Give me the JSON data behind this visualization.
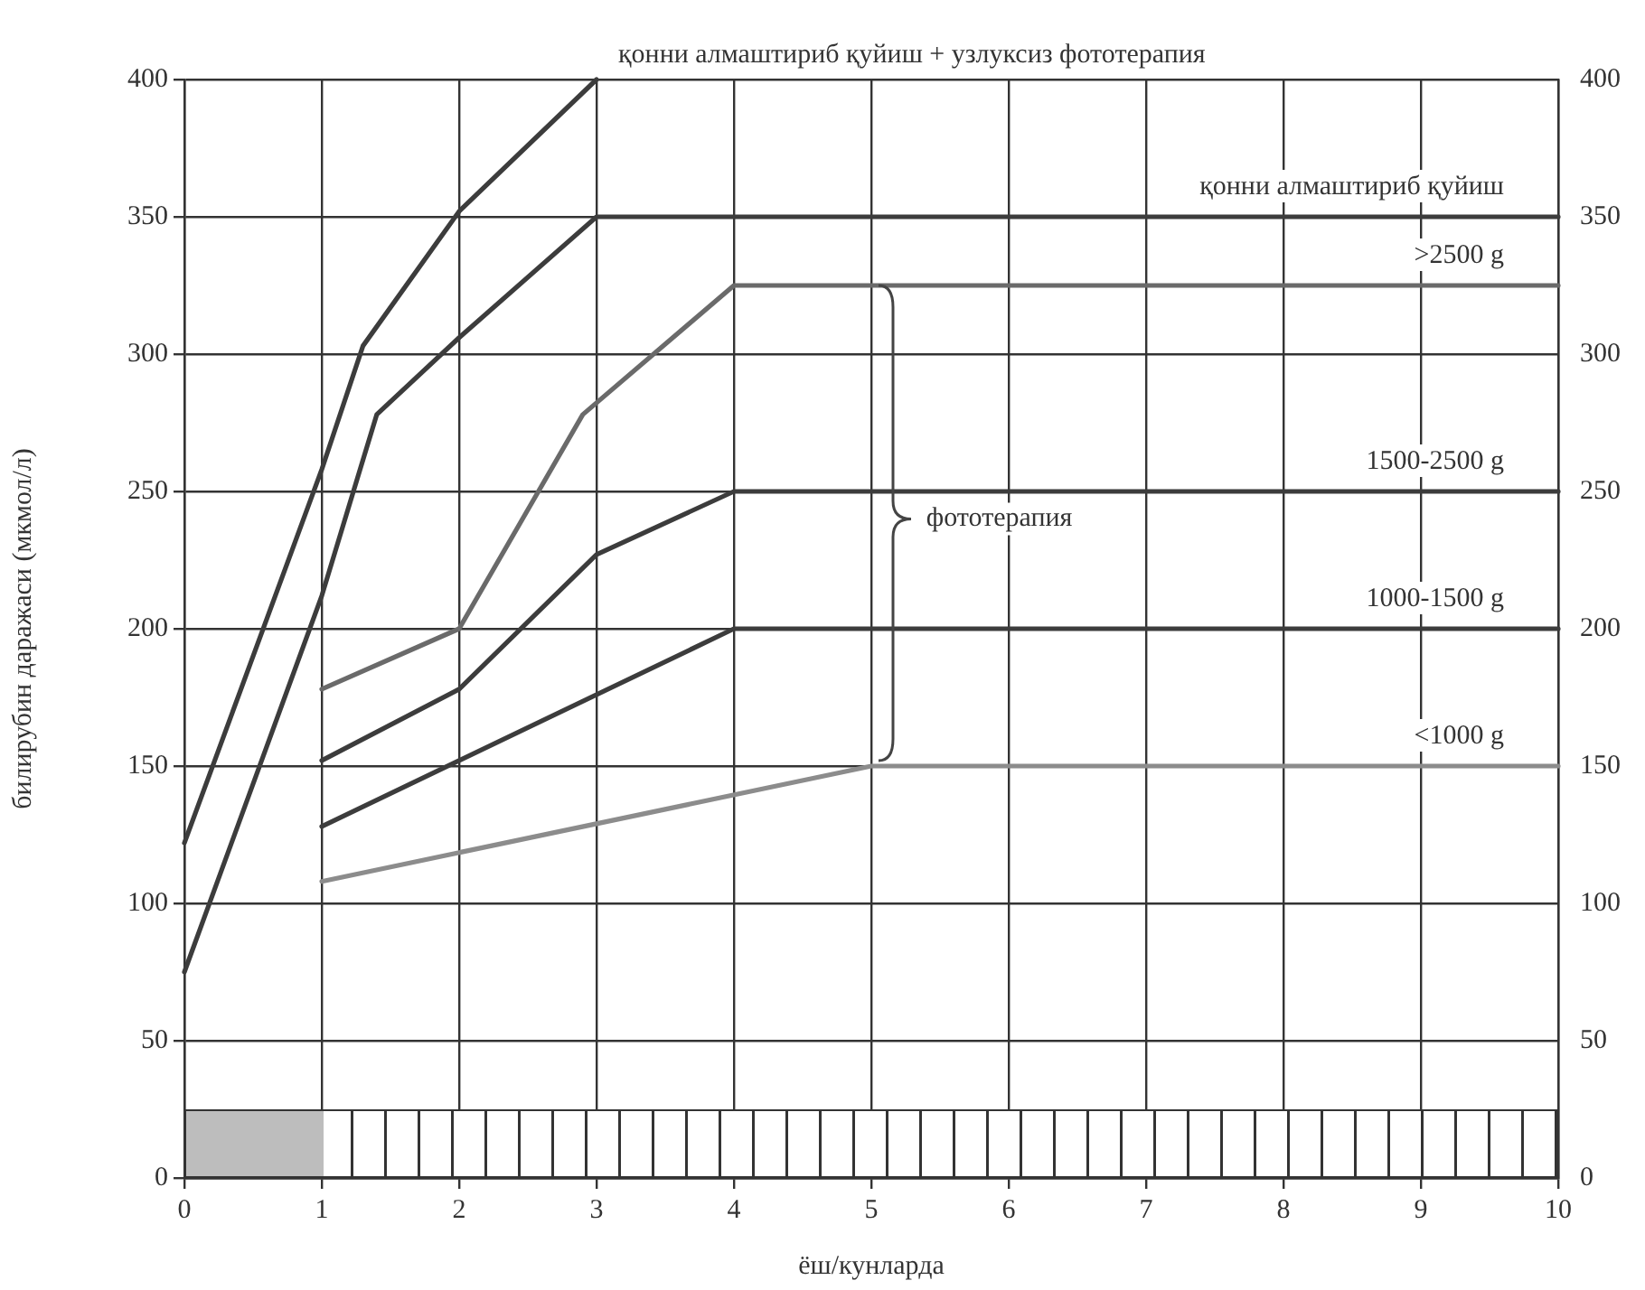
{
  "chart_data": {
    "type": "line",
    "xlabel": "ёш/кунларда",
    "ylabel": "билирубин даражаси (мкмол/л)",
    "xlim": [
      0,
      10
    ],
    "xticks": [
      0,
      1,
      2,
      3,
      4,
      5,
      6,
      7,
      8,
      9,
      10
    ],
    "ylim": [
      0,
      400
    ],
    "yticks": [
      0,
      50,
      100,
      150,
      200,
      250,
      300,
      350,
      400
    ],
    "y2lim": [
      0,
      400
    ],
    "y2ticks": [
      0,
      50,
      100,
      150,
      200,
      250,
      300,
      350,
      400
    ],
    "grid": true,
    "legend": false,
    "marker": "none",
    "line_style": "solid",
    "annotations": [
      "фототерапия"
    ],
    "series": [
      {
        "name": "қонни алмаштириб қуйиш + узлуксиз фототерапия",
        "color": "#3c3c3c",
        "x": [
          0,
          1,
          1.3,
          2,
          3
        ],
        "values": [
          122,
          258,
          303,
          352,
          400
        ]
      },
      {
        "name": "қонни алмаштириб қуйиш",
        "color": "#3c3c3c",
        "x": [
          0,
          1,
          1.4,
          2,
          3,
          10
        ],
        "values": [
          75,
          212,
          278,
          306,
          350,
          350
        ]
      },
      {
        "name": ">2500 g",
        "color": "#6a6a6a",
        "x": [
          1,
          2,
          2.9,
          4,
          10
        ],
        "values": [
          178,
          200,
          278,
          325,
          325
        ]
      },
      {
        "name": "1500-2500 g",
        "color": "#3c3c3c",
        "x": [
          1,
          2,
          3,
          4,
          10
        ],
        "values": [
          152,
          178,
          227,
          250,
          250
        ]
      },
      {
        "name": "1000-1500 g",
        "color": "#3c3c3c",
        "x": [
          1,
          2,
          4,
          10
        ],
        "values": [
          128,
          152,
          200,
          200
        ]
      },
      {
        "name": "<1000 g",
        "color": "#8c8c8c",
        "x": [
          1,
          5,
          10
        ],
        "values": [
          108,
          150,
          150
        ]
      }
    ]
  }
}
